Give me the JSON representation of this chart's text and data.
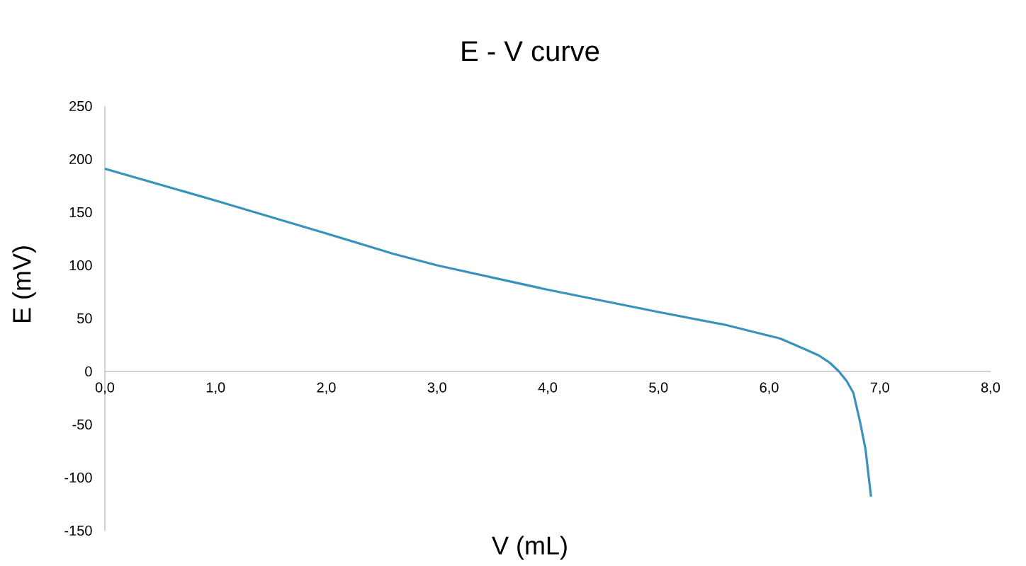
{
  "chart_data": {
    "type": "line",
    "title": "E - V curve",
    "xlabel": "V (mL)",
    "ylabel": "E (mV)",
    "xlim": [
      0,
      8
    ],
    "ylim": [
      -150,
      250
    ],
    "xticks": [
      {
        "value": 0,
        "label": "0,0"
      },
      {
        "value": 1,
        "label": "1,0"
      },
      {
        "value": 2,
        "label": "2,0"
      },
      {
        "value": 3,
        "label": "3,0"
      },
      {
        "value": 4,
        "label": "4,0"
      },
      {
        "value": 5,
        "label": "5,0"
      },
      {
        "value": 6,
        "label": "6,0"
      },
      {
        "value": 7,
        "label": "7,0"
      },
      {
        "value": 8,
        "label": "8,0"
      }
    ],
    "yticks": [
      -150,
      -100,
      -50,
      0,
      50,
      100,
      150,
      200,
      250
    ],
    "series": [
      {
        "color": "#3793bd",
        "x": [
          0,
          1,
          2,
          2.6,
          3,
          4,
          5,
          5.6,
          6.1,
          6.3,
          6.45,
          6.55,
          6.63,
          6.7,
          6.76,
          6.82,
          6.87,
          6.92
        ],
        "values": [
          191,
          161,
          130,
          111,
          100,
          77,
          56,
          44,
          31,
          22,
          15,
          8,
          0,
          -9,
          -20,
          -47,
          -73,
          -118
        ]
      }
    ],
    "marker": "none",
    "line_style": "solid",
    "grid": false
  }
}
